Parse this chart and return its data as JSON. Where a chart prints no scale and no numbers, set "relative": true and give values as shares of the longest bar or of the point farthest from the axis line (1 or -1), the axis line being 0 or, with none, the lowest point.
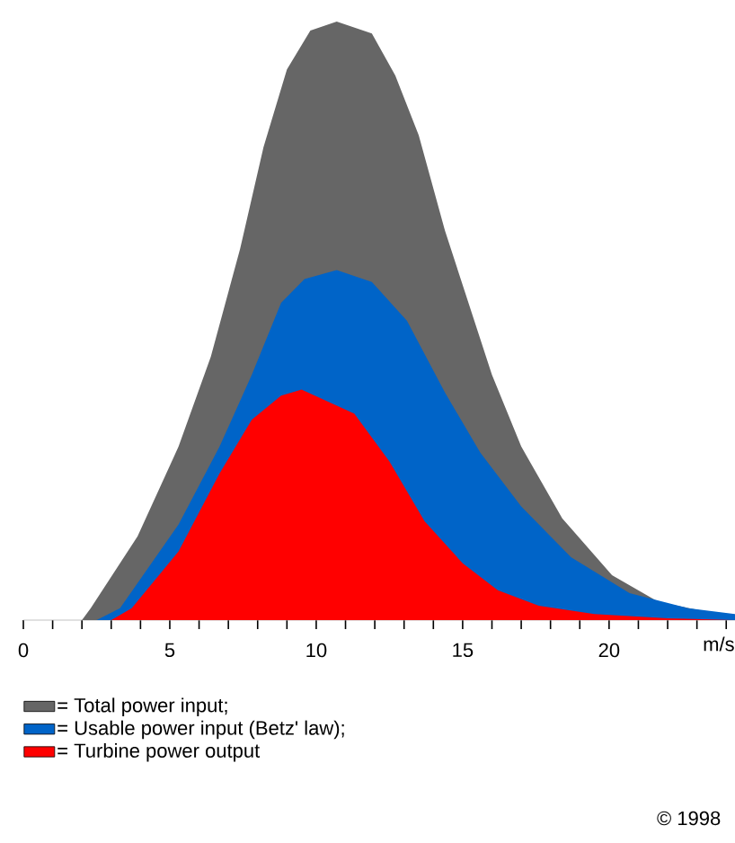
{
  "chart_data": {
    "type": "area",
    "relative": true,
    "xlabel": "m/s",
    "xlim": [
      0,
      24.3
    ],
    "xticks": [
      0,
      {
        "value": 1,
        "label": null
      },
      {
        "value": 2,
        "label": null
      },
      {
        "value": 3,
        "label": null
      },
      {
        "value": 4,
        "label": null
      },
      5,
      {
        "value": 6,
        "label": null
      },
      {
        "value": 7,
        "label": null
      },
      {
        "value": 8,
        "label": null
      },
      {
        "value": 9,
        "label": null
      },
      10,
      {
        "value": 11,
        "label": null
      },
      {
        "value": 12,
        "label": null
      },
      {
        "value": 13,
        "label": null
      },
      {
        "value": 14,
        "label": null
      },
      15,
      {
        "value": 16,
        "label": null
      },
      {
        "value": 17,
        "label": null
      },
      {
        "value": 18,
        "label": null
      },
      {
        "value": 19,
        "label": null
      },
      20,
      {
        "value": 21,
        "label": null
      },
      {
        "value": 22,
        "label": null
      },
      {
        "value": 23,
        "label": null
      },
      {
        "value": 24,
        "label": null
      }
    ],
    "legend": "bottom left",
    "grid": false,
    "annotations": [
      "© 1998"
    ],
    "series": [
      {
        "name": "= Total power input;",
        "color": "#666666",
        "x": [
          0,
          2.0,
          2.3,
          3.9,
          5.3,
          6.4,
          7.4,
          8.2,
          9.0,
          9.8,
          10.7,
          11.9,
          12.7,
          13.5,
          14.4,
          15.2,
          16.0,
          17.0,
          18.4,
          20.1,
          21.7,
          24.3
        ],
        "values": [
          0,
          0,
          0.02,
          0.14,
          0.29,
          0.44,
          0.62,
          0.79,
          0.92,
          0.985,
          1.0,
          0.98,
          0.91,
          0.81,
          0.65,
          0.53,
          0.41,
          0.29,
          0.17,
          0.075,
          0.03,
          0.005
        ]
      },
      {
        "name": "= Usable power input (Betz' law);",
        "color": "#0064c8",
        "x": [
          0,
          2.5,
          3.3,
          5.3,
          6.7,
          7.8,
          8.8,
          9.6,
          10.7,
          11.9,
          13.1,
          14.4,
          15.6,
          17.0,
          18.7,
          20.7,
          22.7,
          24.3
        ],
        "values": [
          0,
          0,
          0.02,
          0.16,
          0.29,
          0.41,
          0.53,
          0.57,
          0.585,
          0.565,
          0.5,
          0.38,
          0.28,
          0.19,
          0.105,
          0.045,
          0.02,
          0.01
        ]
      },
      {
        "name": "= Turbine power output",
        "color": "#ff0000",
        "x": [
          0,
          3.0,
          3.7,
          5.3,
          6.7,
          7.8,
          8.8,
          9.5,
          11.3,
          12.5,
          13.7,
          15.0,
          16.2,
          17.6,
          19.5,
          22.0,
          24.3
        ],
        "values": [
          0,
          0,
          0.02,
          0.115,
          0.245,
          0.335,
          0.375,
          0.385,
          0.345,
          0.265,
          0.165,
          0.095,
          0.05,
          0.024,
          0.01,
          0.003,
          0
        ]
      }
    ]
  }
}
